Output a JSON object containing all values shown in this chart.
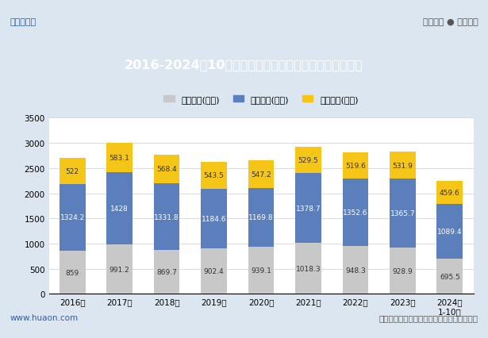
{
  "years": [
    "2016年",
    "2017年",
    "2018年",
    "2019年",
    "2020年",
    "2021年",
    "2022年",
    "2023年",
    "2024年\n1-10月"
  ],
  "sales": [
    859,
    991.2,
    869.7,
    902.4,
    939.1,
    1018.3,
    948.3,
    928.9,
    695.5
  ],
  "mgmt": [
    1324.2,
    1428,
    1331.8,
    1184.6,
    1169.8,
    1378.7,
    1352.6,
    1365.7,
    1089.4
  ],
  "fin": [
    522,
    583.1,
    568.4,
    543.5,
    547.2,
    529.5,
    519.6,
    531.9,
    459.6
  ],
  "sales_color": "#c8c8c8",
  "mgmt_color": "#5b7fbd",
  "fin_color": "#f5c518",
  "title": "2016-2024年10月河北省工业企业销售、管理及财务费用",
  "title_bg": "#2c5f9e",
  "title_color": "#ffffff",
  "legend_labels": [
    "销售费用(亿元)",
    "管理费用(亿元)",
    "财务费用(亿元)"
  ],
  "ylabel": "",
  "ylim": [
    0,
    3500
  ],
  "yticks": [
    0,
    500,
    1000,
    1500,
    2000,
    2500,
    3000,
    3500
  ],
  "header_bg": "#f0f0f0",
  "chart_bg": "#ffffff",
  "outer_bg": "#dce6f0",
  "footer_left": "www.huaon.com",
  "footer_right": "数据来源：国家统计局，华经产业研究院整理",
  "top_left": "华经情报网",
  "top_right": "专业严谨 ● 客观科学"
}
